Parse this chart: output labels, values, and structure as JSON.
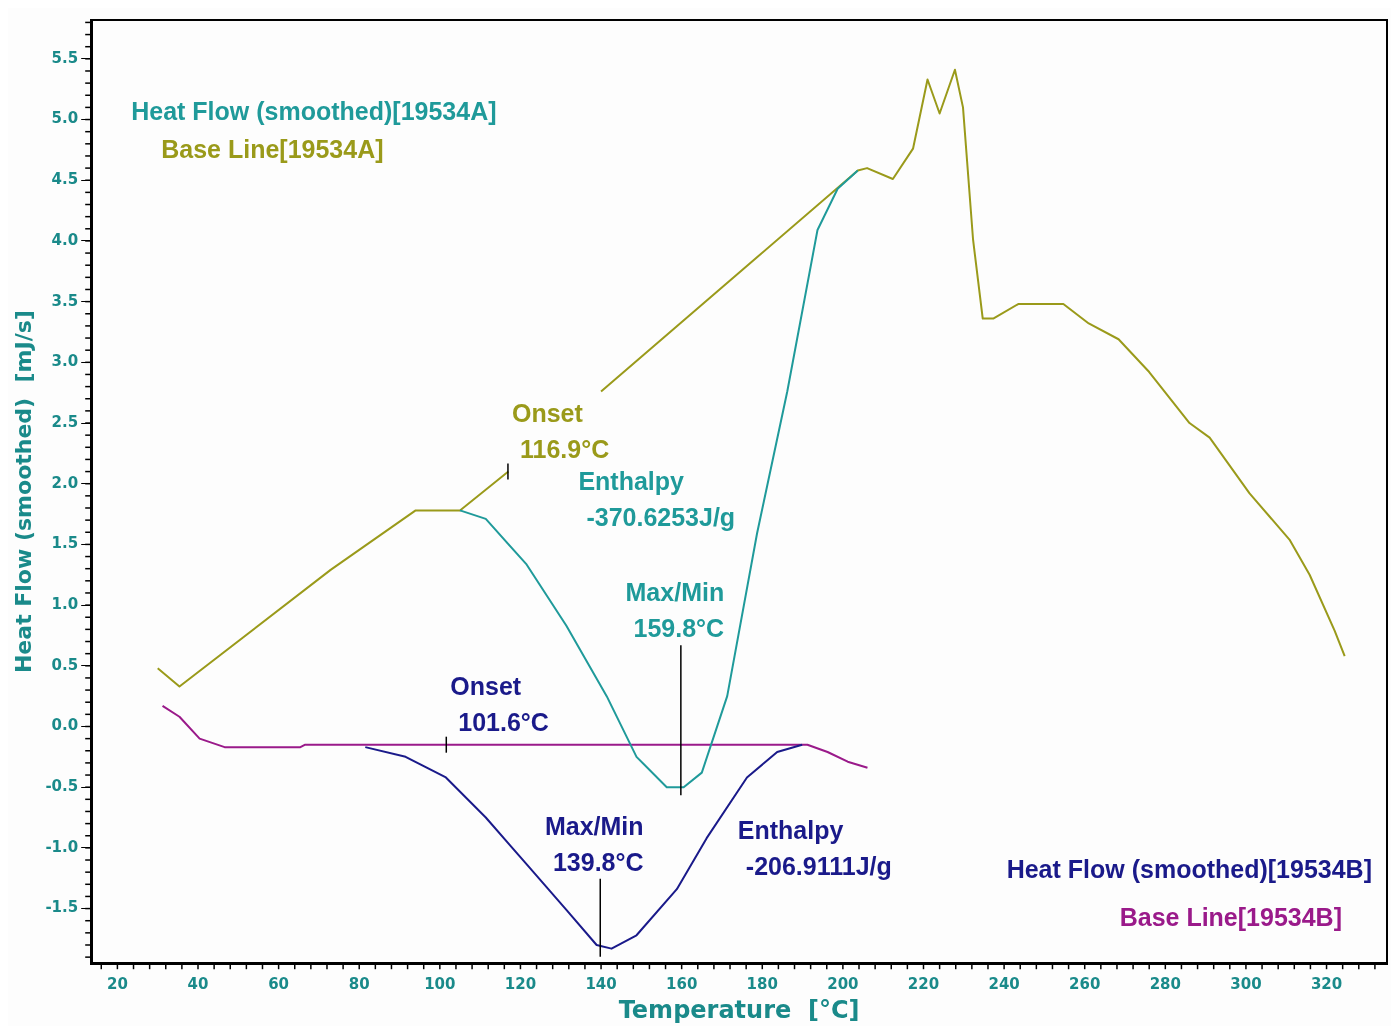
{
  "chart_data": {
    "type": "line",
    "xlabel": "Temperature  [°C]",
    "ylabel": "Heat Flow (smoothed)  [mJ/s]",
    "xlim": [
      13.5,
      335
    ],
    "ylim": [
      -1.95,
      5.82
    ],
    "xticks": [
      20,
      40,
      60,
      80,
      100,
      120,
      140,
      160,
      180,
      200,
      220,
      240,
      260,
      280,
      300,
      320
    ],
    "yticks": [
      {
        "value": -1.5,
        "label": "-1.5"
      },
      {
        "value": -1,
        "label": "-1.0"
      },
      {
        "value": -0.5,
        "label": "-0.5"
      },
      {
        "value": 0,
        "label": "0.0"
      },
      {
        "value": 0.5,
        "label": "0.5"
      },
      {
        "value": 1,
        "label": "1.0"
      },
      {
        "value": 1.5,
        "label": "1.5"
      },
      {
        "value": 2,
        "label": "2.0"
      },
      {
        "value": 2.5,
        "label": "2.5"
      },
      {
        "value": 3,
        "label": "3.0"
      },
      {
        "value": 3.5,
        "label": "3.5"
      },
      {
        "value": 4,
        "label": "4.0"
      },
      {
        "value": 4.5,
        "label": "4.5"
      },
      {
        "value": 5,
        "label": "5.0"
      },
      {
        "value": 5.5,
        "label": "5.5"
      }
    ],
    "grid": false,
    "marker": "none",
    "line_style": "solid",
    "series": [
      {
        "name": "Heat Flow (smoothed)[19534A]",
        "color": "#1f9a9a",
        "x": [
          105,
          111.4,
          121.4,
          131.4,
          141.4,
          148.8,
          156.3,
          160.5,
          165,
          171.3,
          178.7,
          186.2,
          193.7,
          198.7,
          203.7
        ],
        "values": [
          1.78,
          1.71,
          1.34,
          0.83,
          0.25,
          -0.25,
          -0.5,
          -0.5,
          -0.38,
          0.25,
          1.59,
          2.76,
          4.09,
          4.43,
          4.58
        ]
      },
      {
        "name": "Base Line[19534A]",
        "color": "#9a9a1a",
        "x": [
          30,
          35.4,
          72.9,
          94,
          105,
          117,
          128,
          140,
          203.7,
          206,
          212.4,
          217.4,
          221,
          224,
          227.8,
          229.8,
          232.3,
          234.7,
          237.3,
          243.5,
          254.7,
          261,
          268.4,
          276,
          286,
          291,
          300.9,
          310.8,
          315.8,
          322,
          324.5
        ],
        "values": [
          0.48,
          0.33,
          1.29,
          1.78,
          1.78,
          2.1,
          null,
          2.76,
          4.58,
          4.6,
          4.51,
          4.76,
          5.33,
          5.05,
          5.41,
          5.1,
          4.01,
          3.36,
          3.36,
          3.48,
          3.48,
          3.32,
          3.19,
          2.92,
          2.5,
          2.38,
          1.92,
          1.54,
          1.25,
          0.79,
          0.58
        ]
      },
      {
        "name": "Heat Flow (smoothed)[19534B]",
        "color": "#1a1a8a",
        "x": [
          81.5,
          91.5,
          101.5,
          111.4,
          121.4,
          131.4,
          138.9,
          142.6,
          148.8,
          158.8,
          166.2,
          176.2,
          183.7,
          189.9
        ],
        "values": [
          -0.17,
          -0.25,
          -0.42,
          -0.75,
          -1.13,
          -1.51,
          -1.8,
          -1.83,
          -1.72,
          -1.34,
          -0.92,
          -0.42,
          -0.21,
          -0.15
        ]
      },
      {
        "name": "Base Line[19534B]",
        "color": "#9a1a8a",
        "x": [
          31.2,
          35.4,
          40.4,
          46.6,
          65.4,
          66.6,
          191.2,
          196.2,
          201.2,
          206.1
        ],
        "values": [
          0.17,
          0.08,
          -0.1,
          -0.17,
          -0.17,
          -0.15,
          -0.15,
          -0.21,
          -0.29,
          -0.34
        ]
      }
    ],
    "annotations": [
      {
        "text": "Onset\n116.9°C",
        "x": 116.9,
        "y": 2.1
      },
      "Enthalpy\n-370.6253J/g",
      {
        "text": "Max/Min\n159.8°C",
        "x": 159.8,
        "y": -0.5
      },
      {
        "text": "Onset\n101.6°C",
        "x": 101.6,
        "y": -0.15
      },
      {
        "text": "Max/Min\n139.8°C",
        "x": 139.8,
        "y": -1.83
      },
      "Enthalpy\n-206.9111J/g"
    ]
  }
}
